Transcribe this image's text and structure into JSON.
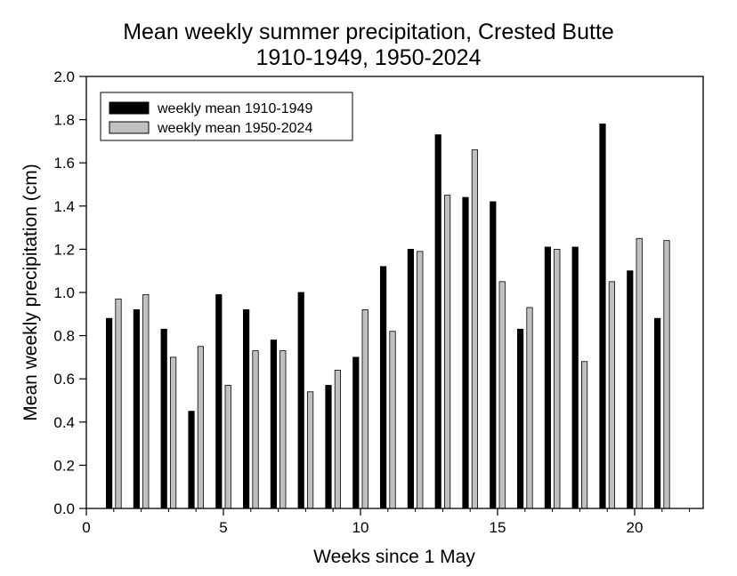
{
  "chart_data": {
    "type": "bar",
    "title_lines": [
      "Mean weekly summer precipitation, Crested Butte",
      "1910-1949, 1950-2024"
    ],
    "xlabel": "Weeks since 1 May",
    "ylabel": "Mean weekly precipitation (cm)",
    "xlim": [
      0,
      22.5
    ],
    "ylim": [
      0,
      2.0
    ],
    "x_ticks": [
      0,
      5,
      10,
      15,
      20
    ],
    "y_ticks": [
      "0.0",
      "0.2",
      "0.4",
      "0.6",
      "0.8",
      "1.0",
      "1.2",
      "1.4",
      "1.6",
      "1.8",
      "2.0"
    ],
    "grid": false,
    "legend_position": "top-left",
    "weeks": [
      1,
      2,
      3,
      4,
      5,
      6,
      7,
      8,
      9,
      10,
      11,
      12,
      13,
      14,
      15,
      16,
      17,
      18,
      19,
      20,
      21
    ],
    "series": [
      {
        "name": "weekly mean 1910-1949",
        "color": "#000000",
        "values": [
          0.88,
          0.92,
          0.83,
          0.45,
          0.99,
          0.92,
          0.78,
          1.0,
          0.57,
          0.7,
          1.12,
          1.2,
          1.73,
          1.44,
          1.42,
          0.83,
          1.21,
          1.21,
          1.78,
          1.1,
          0.88
        ]
      },
      {
        "name": "weekly mean 1950-2024",
        "color": "#c0c0c0",
        "values": [
          0.97,
          0.99,
          0.7,
          0.75,
          0.57,
          0.73,
          0.73,
          0.54,
          0.64,
          0.92,
          0.82,
          1.19,
          1.45,
          1.66,
          1.05,
          0.93,
          1.2,
          0.68,
          1.05,
          1.25,
          1.24
        ]
      }
    ]
  }
}
